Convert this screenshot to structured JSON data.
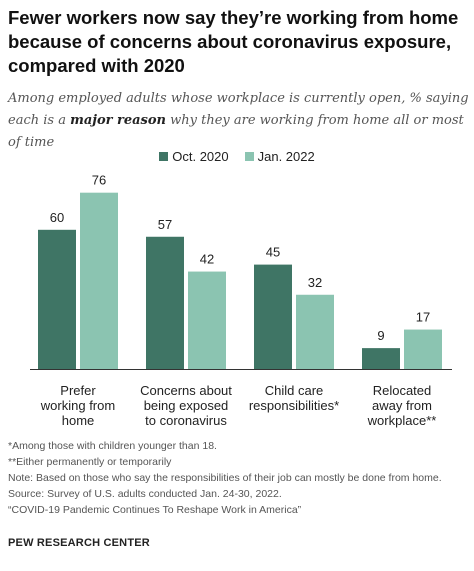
{
  "title": "Fewer workers now say they’re working from home because of concerns about coronavirus exposure, compared with 2020",
  "subtitle_pre": "Among employed adults whose workplace is currently open, % saying each is a ",
  "subtitle_bold": "major reason",
  "subtitle_post": " why they are working from home all or most of time",
  "notes": {
    "footnote1": "*Among those with children younger than 18.",
    "footnote2": "**Either permanently or temporarily",
    "note": "Note: Based on those who say the responsibilities of their job can mostly be done from home.",
    "source": "Source:  Survey of U.S. adults conducted Jan. 24-30, 2022.",
    "report": "“COVID-19 Pandemic Continues To Reshape Work in America”"
  },
  "brand": "PEW RESEARCH CENTER",
  "colors": {
    "oct2020": "#3f7565",
    "jan2022": "#8bc4b1"
  },
  "chart_data": {
    "type": "bar",
    "categories": [
      [
        "Prefer",
        "working from",
        "home"
      ],
      [
        "Concerns about",
        "being exposed",
        "to coronavirus"
      ],
      [
        "Child care",
        "responsibilities*"
      ],
      [
        "Relocated",
        "away from",
        "workplace**"
      ]
    ],
    "series": [
      {
        "name": "Oct. 2020",
        "values": [
          60,
          57,
          45,
          9
        ]
      },
      {
        "name": "Jan. 2022",
        "values": [
          76,
          42,
          32,
          17
        ]
      }
    ],
    "ylim": [
      0,
      100
    ],
    "legend": "top-center",
    "grid": false
  }
}
